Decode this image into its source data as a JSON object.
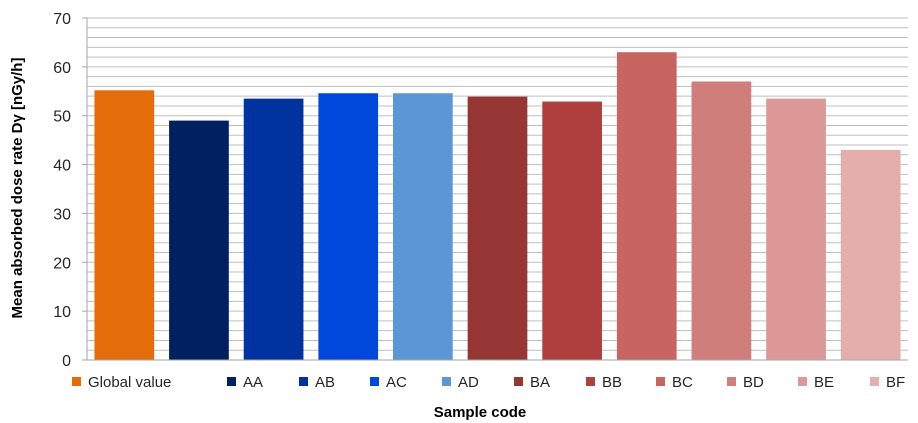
{
  "chart_data": {
    "type": "bar",
    "title": "",
    "xlabel": "Sample code",
    "ylabel": "Mean absorbed dose rate Dγ [nGy/h]",
    "ylim": [
      0,
      70
    ],
    "yticks": [
      0,
      10,
      20,
      30,
      40,
      50,
      60,
      70
    ],
    "grid": true,
    "gridlines": "horizontal, every 2 units",
    "legend_position": "bottom",
    "categories": [
      "Global value",
      "AA",
      "AB",
      "AC",
      "AD",
      "BA",
      "BB",
      "BC",
      "BD",
      "BE",
      "BF"
    ],
    "series": [
      {
        "values": [
          55.2,
          49.0,
          53.5,
          54.6,
          54.6,
          53.9,
          52.9,
          63.0,
          57.0,
          53.5,
          43.0
        ]
      }
    ],
    "colors": [
      "#E46C0A",
      "#002060",
      "#0033A0",
      "#0047DC",
      "#5B96D6",
      "#963634",
      "#B0403E",
      "#C86462",
      "#D07E7C",
      "#DB9896",
      "#E4AEAD"
    ],
    "grid_color": "#BFBFBF",
    "axis_color": "#A6A6A6"
  }
}
